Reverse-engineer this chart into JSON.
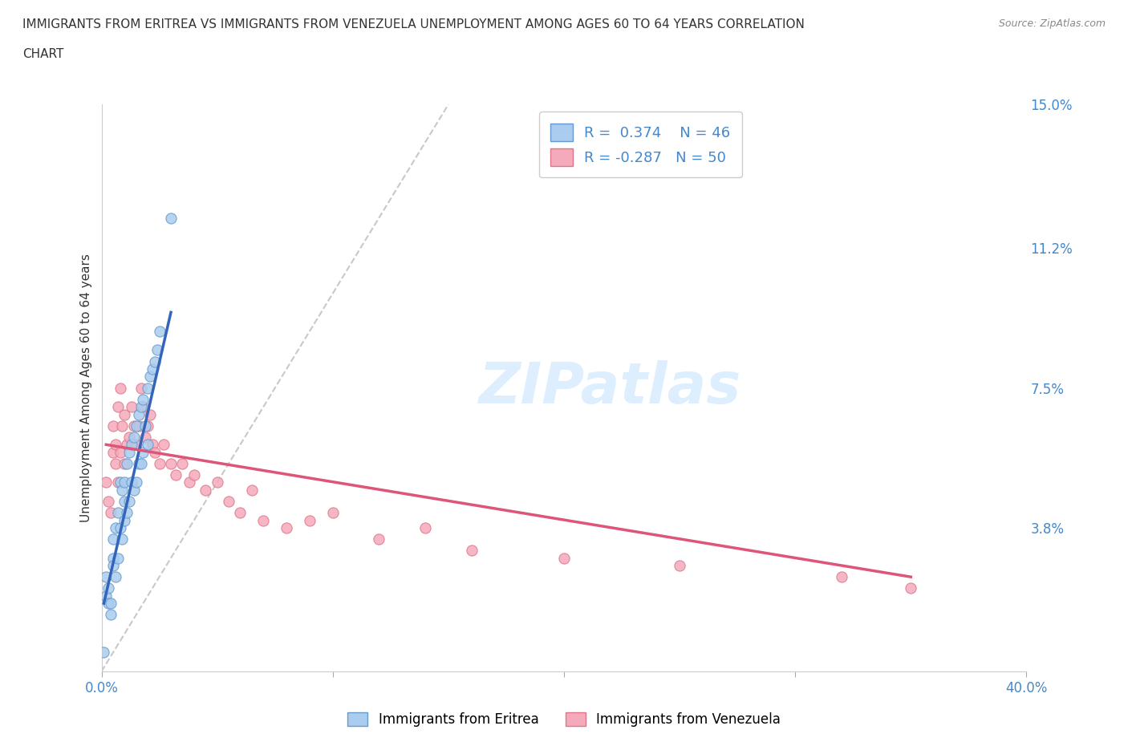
{
  "title_line1": "IMMIGRANTS FROM ERITREA VS IMMIGRANTS FROM VENEZUELA UNEMPLOYMENT AMONG AGES 60 TO 64 YEARS CORRELATION",
  "title_line2": "CHART",
  "source": "Source: ZipAtlas.com",
  "ylabel": "Unemployment Among Ages 60 to 64 years",
  "right_yticks": [
    0.0,
    0.038,
    0.075,
    0.112,
    0.15
  ],
  "right_yticklabels": [
    "",
    "3.8%",
    "7.5%",
    "11.2%",
    "15.0%"
  ],
  "xlim": [
    0.0,
    0.4
  ],
  "ylim": [
    0.0,
    0.15
  ],
  "eritrea_R": 0.374,
  "eritrea_N": 46,
  "venezuela_R": -0.287,
  "venezuela_N": 50,
  "eritrea_color": "#aaccee",
  "eritrea_edge": "#6699cc",
  "venezuela_color": "#f5aabb",
  "venezuela_edge": "#dd7788",
  "eritrea_trend_color": "#3366bb",
  "venezuela_trend_color": "#dd5577",
  "diagonal_color": "#bbbbbb",
  "legend_label_eritrea": "Immigrants from Eritrea",
  "legend_label_venezuela": "Immigrants from Venezuela",
  "watermark_text": "ZIPatlas",
  "watermark_color": "#ddeeff",
  "grid_color": "#dddddd",
  "axis_label_color": "#4488cc",
  "title_color": "#333333",
  "eritrea_x": [
    0.001,
    0.002,
    0.002,
    0.003,
    0.003,
    0.004,
    0.004,
    0.005,
    0.005,
    0.005,
    0.006,
    0.006,
    0.007,
    0.007,
    0.008,
    0.008,
    0.009,
    0.009,
    0.01,
    0.01,
    0.01,
    0.011,
    0.011,
    0.012,
    0.012,
    0.013,
    0.013,
    0.014,
    0.014,
    0.015,
    0.015,
    0.016,
    0.016,
    0.017,
    0.017,
    0.018,
    0.018,
    0.019,
    0.02,
    0.02,
    0.021,
    0.022,
    0.023,
    0.024,
    0.025,
    0.03
  ],
  "eritrea_y": [
    0.005,
    0.02,
    0.025,
    0.018,
    0.022,
    0.015,
    0.018,
    0.035,
    0.03,
    0.028,
    0.038,
    0.025,
    0.042,
    0.03,
    0.05,
    0.038,
    0.048,
    0.035,
    0.05,
    0.045,
    0.04,
    0.055,
    0.042,
    0.058,
    0.045,
    0.06,
    0.05,
    0.062,
    0.048,
    0.065,
    0.05,
    0.068,
    0.055,
    0.07,
    0.055,
    0.072,
    0.058,
    0.065,
    0.075,
    0.06,
    0.078,
    0.08,
    0.082,
    0.085,
    0.09,
    0.12
  ],
  "venezuela_x": [
    0.002,
    0.003,
    0.004,
    0.005,
    0.005,
    0.006,
    0.006,
    0.007,
    0.007,
    0.008,
    0.008,
    0.009,
    0.01,
    0.01,
    0.011,
    0.012,
    0.013,
    0.014,
    0.015,
    0.016,
    0.017,
    0.018,
    0.019,
    0.02,
    0.021,
    0.022,
    0.023,
    0.025,
    0.027,
    0.03,
    0.032,
    0.035,
    0.038,
    0.04,
    0.045,
    0.05,
    0.055,
    0.06,
    0.065,
    0.07,
    0.08,
    0.09,
    0.1,
    0.12,
    0.14,
    0.16,
    0.2,
    0.25,
    0.32,
    0.35
  ],
  "venezuela_y": [
    0.05,
    0.045,
    0.042,
    0.065,
    0.058,
    0.06,
    0.055,
    0.07,
    0.05,
    0.075,
    0.058,
    0.065,
    0.068,
    0.055,
    0.06,
    0.062,
    0.07,
    0.065,
    0.06,
    0.065,
    0.075,
    0.07,
    0.062,
    0.065,
    0.068,
    0.06,
    0.058,
    0.055,
    0.06,
    0.055,
    0.052,
    0.055,
    0.05,
    0.052,
    0.048,
    0.05,
    0.045,
    0.042,
    0.048,
    0.04,
    0.038,
    0.04,
    0.042,
    0.035,
    0.038,
    0.032,
    0.03,
    0.028,
    0.025,
    0.022
  ],
  "eritrea_trend_x": [
    0.001,
    0.03
  ],
  "eritrea_trend_y": [
    0.018,
    0.095
  ],
  "venezuela_trend_x": [
    0.002,
    0.35
  ],
  "venezuela_trend_y": [
    0.06,
    0.025
  ]
}
